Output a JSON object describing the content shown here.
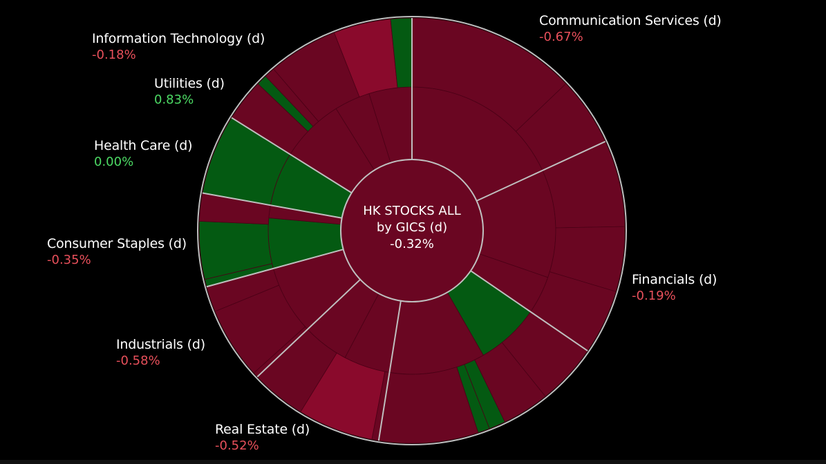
{
  "colors": {
    "background": "#000000",
    "negative_text": "#e8505b",
    "positive_text": "#4cd964",
    "segment_red": "#6a0622",
    "segment_red_bright": "#8a0a2c",
    "segment_green": "#045a12",
    "segment_stroke": "#4a0016",
    "divider": "#bfbfbf"
  },
  "chart_data": {
    "type": "sunburst",
    "center": {
      "title_line1": "HK STOCKS ALL",
      "title_line2": "by GICS (d)",
      "value": "-0.32%"
    },
    "sectors": [
      {
        "name": "Communication Services (d)",
        "change": "-0.67%",
        "sign": "neg",
        "share": 0.1812
      },
      {
        "name": "Financials (d)",
        "change": "-0.19%",
        "sign": "neg",
        "share": 0.1644
      },
      {
        "name": "Real Estate (d)",
        "change": "-0.52%",
        "sign": "neg",
        "share": 0.1794
      },
      {
        "name": "Industrials (d)",
        "change": "-0.58%",
        "sign": "neg",
        "share": 0.1044
      },
      {
        "name": "Consumer Staples (d)",
        "change": "-0.35%",
        "sign": "neg",
        "share": 0.0781
      },
      {
        "name": "Health Care (d)",
        "change": "0.00%",
        "sign": "pos",
        "share": 0.0708
      },
      {
        "name": "Utilities (d)",
        "change": "0.83%",
        "sign": "pos",
        "share": 0.0608
      },
      {
        "name": "Information Technology (d)",
        "change": "-0.18%",
        "sign": "neg",
        "share": 0.1609
      }
    ]
  }
}
